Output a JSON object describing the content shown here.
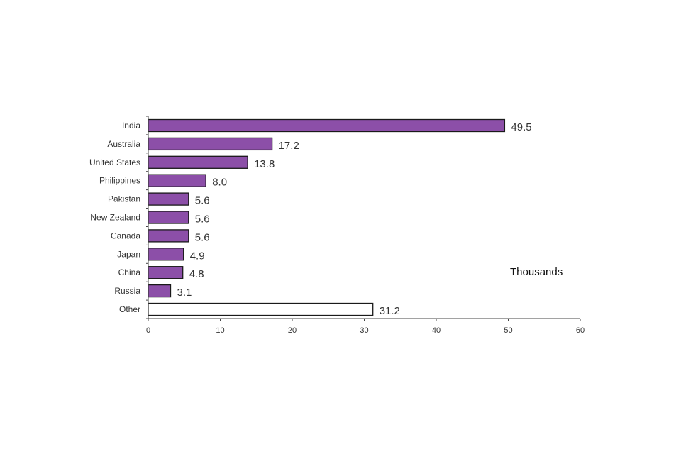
{
  "chart_data": {
    "type": "bar",
    "orientation": "horizontal",
    "categories": [
      "India",
      "Australia",
      "United States",
      "Philippines",
      "Pakistan",
      "New Zealand",
      "Canada",
      "Japan",
      "China",
      "Russia",
      "Other"
    ],
    "values": [
      49.5,
      17.2,
      13.8,
      8.0,
      5.6,
      5.6,
      5.6,
      4.9,
      4.8,
      3.1,
      31.2
    ],
    "value_labels": [
      "49.5",
      "17.2",
      "13.8",
      "8.0",
      "5.6",
      "5.6",
      "5.6",
      "4.9",
      "4.8",
      "3.1",
      "31.2"
    ],
    "unit_label": "Thousands",
    "title": "",
    "xlabel": "",
    "ylabel": "",
    "xlim": [
      0,
      60
    ],
    "xticks": [
      0,
      10,
      20,
      30,
      40,
      50,
      60
    ],
    "grid": false,
    "colors": {
      "bar_fill": "#8c4fa8",
      "other_fill": "#ffffff",
      "bar_stroke": "#1a1a1a"
    }
  }
}
